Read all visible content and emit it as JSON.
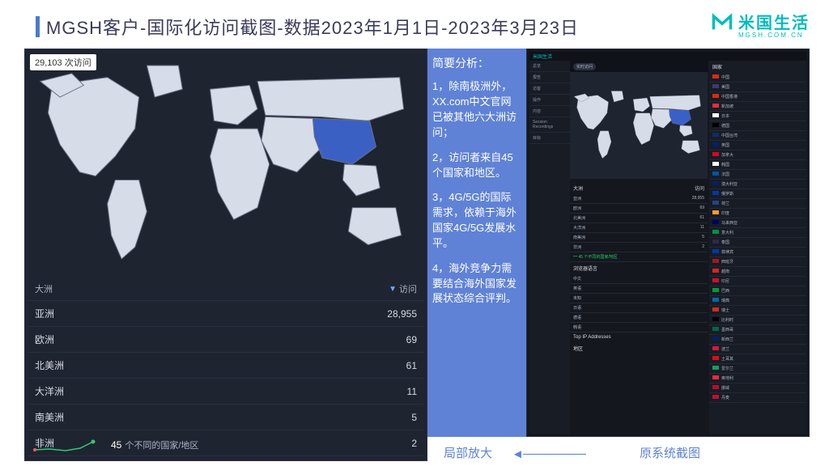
{
  "title": "MGSH客户-国际化访问截图-数据2023年1月1日-2023年3月23日",
  "title_bar_color": "#4a7bd0",
  "logo": {
    "cn": "米国生活",
    "en": "MGSH.COM.CN",
    "mark_color": "#00bdbd"
  },
  "dashboard": {
    "bg": "#1f2431",
    "visits_badge": "29,103 次访问",
    "map": {
      "land_fill": "#d6dde8",
      "land_stroke": "#6a7184",
      "highlight_fill": "#3b60c4",
      "ocean": "#1f2431"
    },
    "table": {
      "header_left": "大洲",
      "header_right": "访问",
      "filter_icon_color": "#6fa8ff",
      "rows": [
        {
          "label": "亚洲",
          "value": "28,955"
        },
        {
          "label": "欧洲",
          "value": "69"
        },
        {
          "label": "北美洲",
          "value": "61"
        },
        {
          "label": "大洋洲",
          "value": "11"
        },
        {
          "label": "南美洲",
          "value": "5"
        },
        {
          "label": "非洲",
          "value": "2"
        }
      ]
    },
    "footer": {
      "countries_count": "45",
      "countries_label": "个不同的国家/地区",
      "spark_colors": [
        "#ff5b5b",
        "#2ecc71"
      ]
    }
  },
  "analysis": {
    "bg": "#5f82d6",
    "heading": "简要分析：",
    "points": [
      "1，除南极洲外，XX.com中文官网已被其他六大洲访问；",
      "2，访问者来自45个国家和地区。",
      "3，4G/5G的国际需求，依赖于海外国家4G/5G发展水平。",
      "4，海外竞争力需要结合海外国家发展状态综合评判。"
    ]
  },
  "thumbnail": {
    "brand": "米国生活",
    "sidebar_items": [
      "总览",
      "报告",
      "访客",
      "操作",
      "内容",
      "Session Recordings",
      "目标"
    ],
    "toggle_label": "实时访问",
    "sections": {
      "continent_header": "大洲",
      "continent_visits_header": "访问",
      "continents": [
        {
          "l": "亚洲",
          "v": "28,955"
        },
        {
          "l": "欧洲",
          "v": "69"
        },
        {
          "l": "北美洲",
          "v": "61"
        },
        {
          "l": "大洋洲",
          "v": "11"
        },
        {
          "l": "南美洲",
          "v": "5"
        },
        {
          "l": "非洲",
          "v": "2"
        }
      ],
      "browser_lang_header": "浏览器语言",
      "browser_langs": [
        {
          "l": "中文",
          "v": ""
        },
        {
          "l": "英语",
          "v": ""
        },
        {
          "l": "未知",
          "v": ""
        },
        {
          "l": "日语",
          "v": ""
        },
        {
          "l": "德语",
          "v": ""
        },
        {
          "l": "韩语",
          "v": ""
        }
      ],
      "countries_panel_header": "国家",
      "countries": [
        {
          "l": "中国",
          "c": "#de2910",
          "v": ""
        },
        {
          "l": "美国",
          "c": "#3c3b6e",
          "v": ""
        },
        {
          "l": "中国香港",
          "c": "#de2910",
          "v": ""
        },
        {
          "l": "新加坡",
          "c": "#ed2939",
          "v": ""
        },
        {
          "l": "日本",
          "c": "#ffffff",
          "v": ""
        },
        {
          "l": "德国",
          "c": "#000000",
          "v": ""
        },
        {
          "l": "中国台湾",
          "c": "#0d2c6c",
          "v": ""
        },
        {
          "l": "英国",
          "c": "#012169",
          "v": ""
        },
        {
          "l": "加拿大",
          "c": "#d80621",
          "v": ""
        },
        {
          "l": "韩国",
          "c": "#ffffff",
          "v": ""
        },
        {
          "l": "法国",
          "c": "#0055a4",
          "v": ""
        },
        {
          "l": "澳大利亚",
          "c": "#012169",
          "v": ""
        },
        {
          "l": "俄罗斯",
          "c": "#0039a6",
          "v": ""
        },
        {
          "l": "荷兰",
          "c": "#21468b",
          "v": ""
        },
        {
          "l": "印度",
          "c": "#ff9933",
          "v": ""
        },
        {
          "l": "马来西亚",
          "c": "#010066",
          "v": ""
        },
        {
          "l": "意大利",
          "c": "#009246",
          "v": ""
        },
        {
          "l": "泰国",
          "c": "#2d2a4a",
          "v": ""
        },
        {
          "l": "菲律宾",
          "c": "#0038a8",
          "v": ""
        },
        {
          "l": "西班牙",
          "c": "#aa151b",
          "v": ""
        },
        {
          "l": "越南",
          "c": "#da251d",
          "v": ""
        },
        {
          "l": "印尼",
          "c": "#ce1126",
          "v": ""
        },
        {
          "l": "巴西",
          "c": "#009b3a",
          "v": ""
        },
        {
          "l": "瑞典",
          "c": "#006aa7",
          "v": ""
        },
        {
          "l": "瑞士",
          "c": "#d52b1e",
          "v": ""
        },
        {
          "l": "比利时",
          "c": "#000000",
          "v": ""
        },
        {
          "l": "墨西哥",
          "c": "#006847",
          "v": ""
        },
        {
          "l": "新西兰",
          "c": "#012169",
          "v": ""
        },
        {
          "l": "波兰",
          "c": "#dc143c",
          "v": ""
        },
        {
          "l": "土耳其",
          "c": "#e30a17",
          "v": ""
        },
        {
          "l": "爱尔兰",
          "c": "#169b62",
          "v": ""
        },
        {
          "l": "奥地利",
          "c": "#ed2939",
          "v": ""
        },
        {
          "l": "挪威",
          "c": "#ba0c2f",
          "v": ""
        },
        {
          "l": "丹麦",
          "c": "#c60c30",
          "v": ""
        }
      ],
      "top_ip_header": "Top IP Addresses",
      "region_header": "地区"
    }
  },
  "captions": {
    "left": "局部放大",
    "right": "原系统截图",
    "arrow_color": "#5f82d6"
  }
}
